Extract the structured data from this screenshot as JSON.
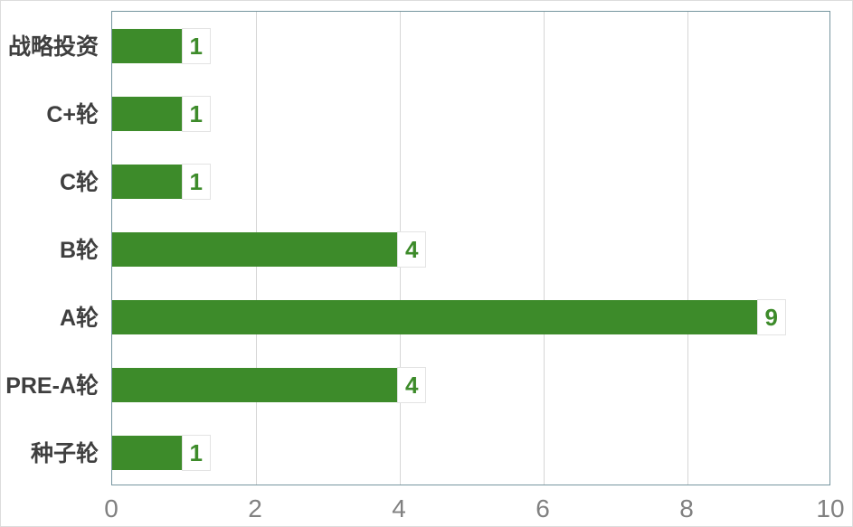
{
  "figure": {
    "background": "#FFFFFF",
    "border_color": "#DCDCDC"
  },
  "chart_data": {
    "type": "bar",
    "orientation": "horizontal",
    "title": "",
    "xlabel": "",
    "ylabel": "",
    "categories": [
      "战略投资",
      "C+轮",
      "C轮",
      "B轮",
      "A轮",
      "PRE-A轮",
      "种子轮"
    ],
    "values": [
      1,
      1,
      1,
      4,
      9,
      4,
      1
    ],
    "data_labels": [
      "1",
      "1",
      "1",
      "4",
      "9",
      "4",
      "1"
    ],
    "xlim": [
      0,
      10
    ],
    "x_ticks": [
      "0",
      "2",
      "4",
      "6",
      "8",
      "10"
    ],
    "x_tick_values": [
      0,
      2,
      4,
      6,
      8,
      10
    ],
    "grid": "vertical",
    "legend_position": "none",
    "colors": {
      "bar": "#3D8B2A",
      "data_label_text": "#3D8B2A",
      "data_label_bg": "#FFFFFF",
      "data_label_border": "#E3E3E3",
      "category_label": "#3F3F3F",
      "tick_label": "#808080",
      "plot_border": "#76959F",
      "gridline": "#D6D6D6"
    }
  }
}
